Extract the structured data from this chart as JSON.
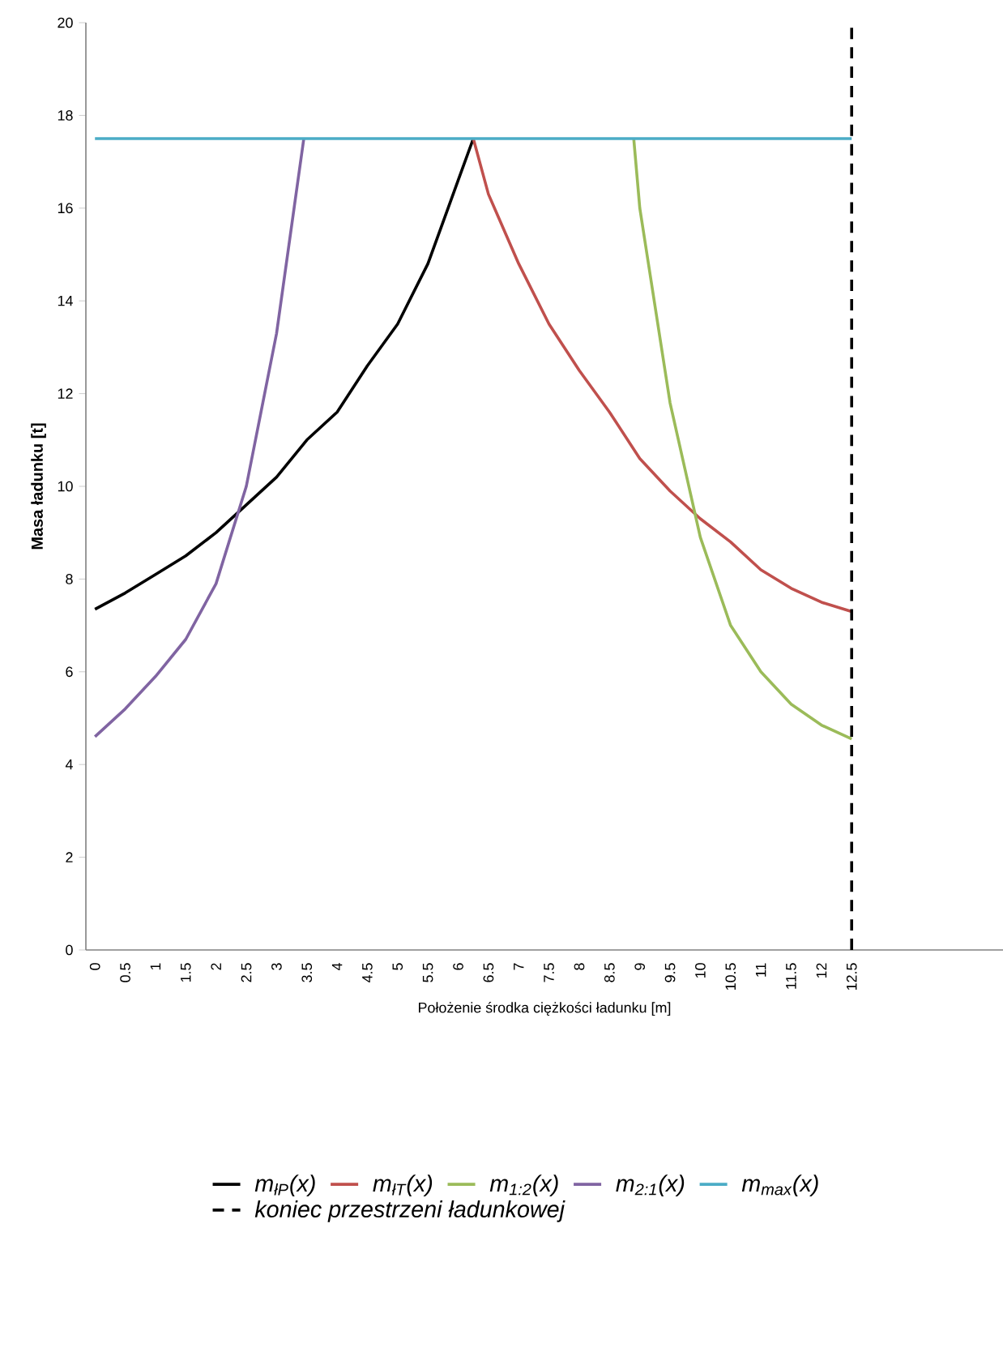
{
  "chart_data": {
    "type": "line",
    "xlabel": "Położenie środka ciężkości ładunku [m]",
    "ylabel": "Masa ładunku [t]",
    "xlim": [
      -0.15,
      15
    ],
    "ylim": [
      0,
      20
    ],
    "xticks": [
      0,
      0.5,
      1,
      1.5,
      2,
      2.5,
      3,
      3.5,
      4,
      4.5,
      5,
      5.5,
      6,
      6.5,
      7,
      7.5,
      8,
      8.5,
      9,
      9.5,
      10,
      10.5,
      11,
      11.5,
      12,
      12.5
    ],
    "yticks": [
      0,
      2,
      4,
      6,
      8,
      10,
      12,
      14,
      16,
      18,
      20
    ],
    "grid": false,
    "legend": "bottom",
    "marker": "none",
    "line_style": "solid",
    "series": [
      {
        "name": "m$_{łP}$(x)",
        "color": "#000000",
        "x": [
          0,
          0.5,
          1,
          1.5,
          2,
          2.5,
          3,
          3.5,
          4,
          4.5,
          5,
          5.5,
          6,
          6.25
        ],
        "values": [
          7.35,
          7.7,
          8.1,
          8.5,
          9.0,
          9.6,
          10.2,
          11.0,
          11.6,
          12.6,
          13.5,
          14.8,
          16.6,
          17.5
        ]
      },
      {
        "name": "m$_{łT}$(x)",
        "color": "#c0504d",
        "x": [
          6.25,
          6.5,
          7,
          7.5,
          8,
          8.5,
          9,
          9.5,
          10,
          10.5,
          11,
          11.5,
          12,
          12.5
        ],
        "values": [
          17.5,
          16.3,
          14.8,
          13.5,
          12.5,
          11.6,
          10.6,
          9.9,
          9.3,
          8.8,
          8.2,
          7.8,
          7.5,
          7.3
        ]
      },
      {
        "name": "m$_{1:2}$(x)",
        "color": "#9bbb59",
        "x": [
          8.9,
          9,
          9.5,
          10,
          10.5,
          11,
          11.5,
          12,
          12.5
        ],
        "values": [
          17.5,
          16.0,
          11.8,
          8.9,
          7.0,
          6.0,
          5.3,
          4.85,
          4.55
        ]
      },
      {
        "name": "m$_{2:1}$(x)",
        "color": "#8064a2",
        "x": [
          0,
          0.5,
          1,
          1.5,
          2,
          2.5,
          3,
          3.45
        ],
        "values": [
          4.6,
          5.2,
          5.9,
          6.7,
          7.9,
          10.0,
          13.3,
          17.5
        ]
      },
      {
        "name": "m$_{max}$(x)",
        "color": "#4bacc6",
        "x": [
          0,
          12.5
        ],
        "values": [
          17.5,
          17.5
        ]
      }
    ],
    "ref_lines": [
      {
        "axis": "x",
        "value": 12.5,
        "label": "koniec przestrzeni ładunkowej",
        "color": "#000000",
        "line_style": "dashed"
      }
    ]
  }
}
